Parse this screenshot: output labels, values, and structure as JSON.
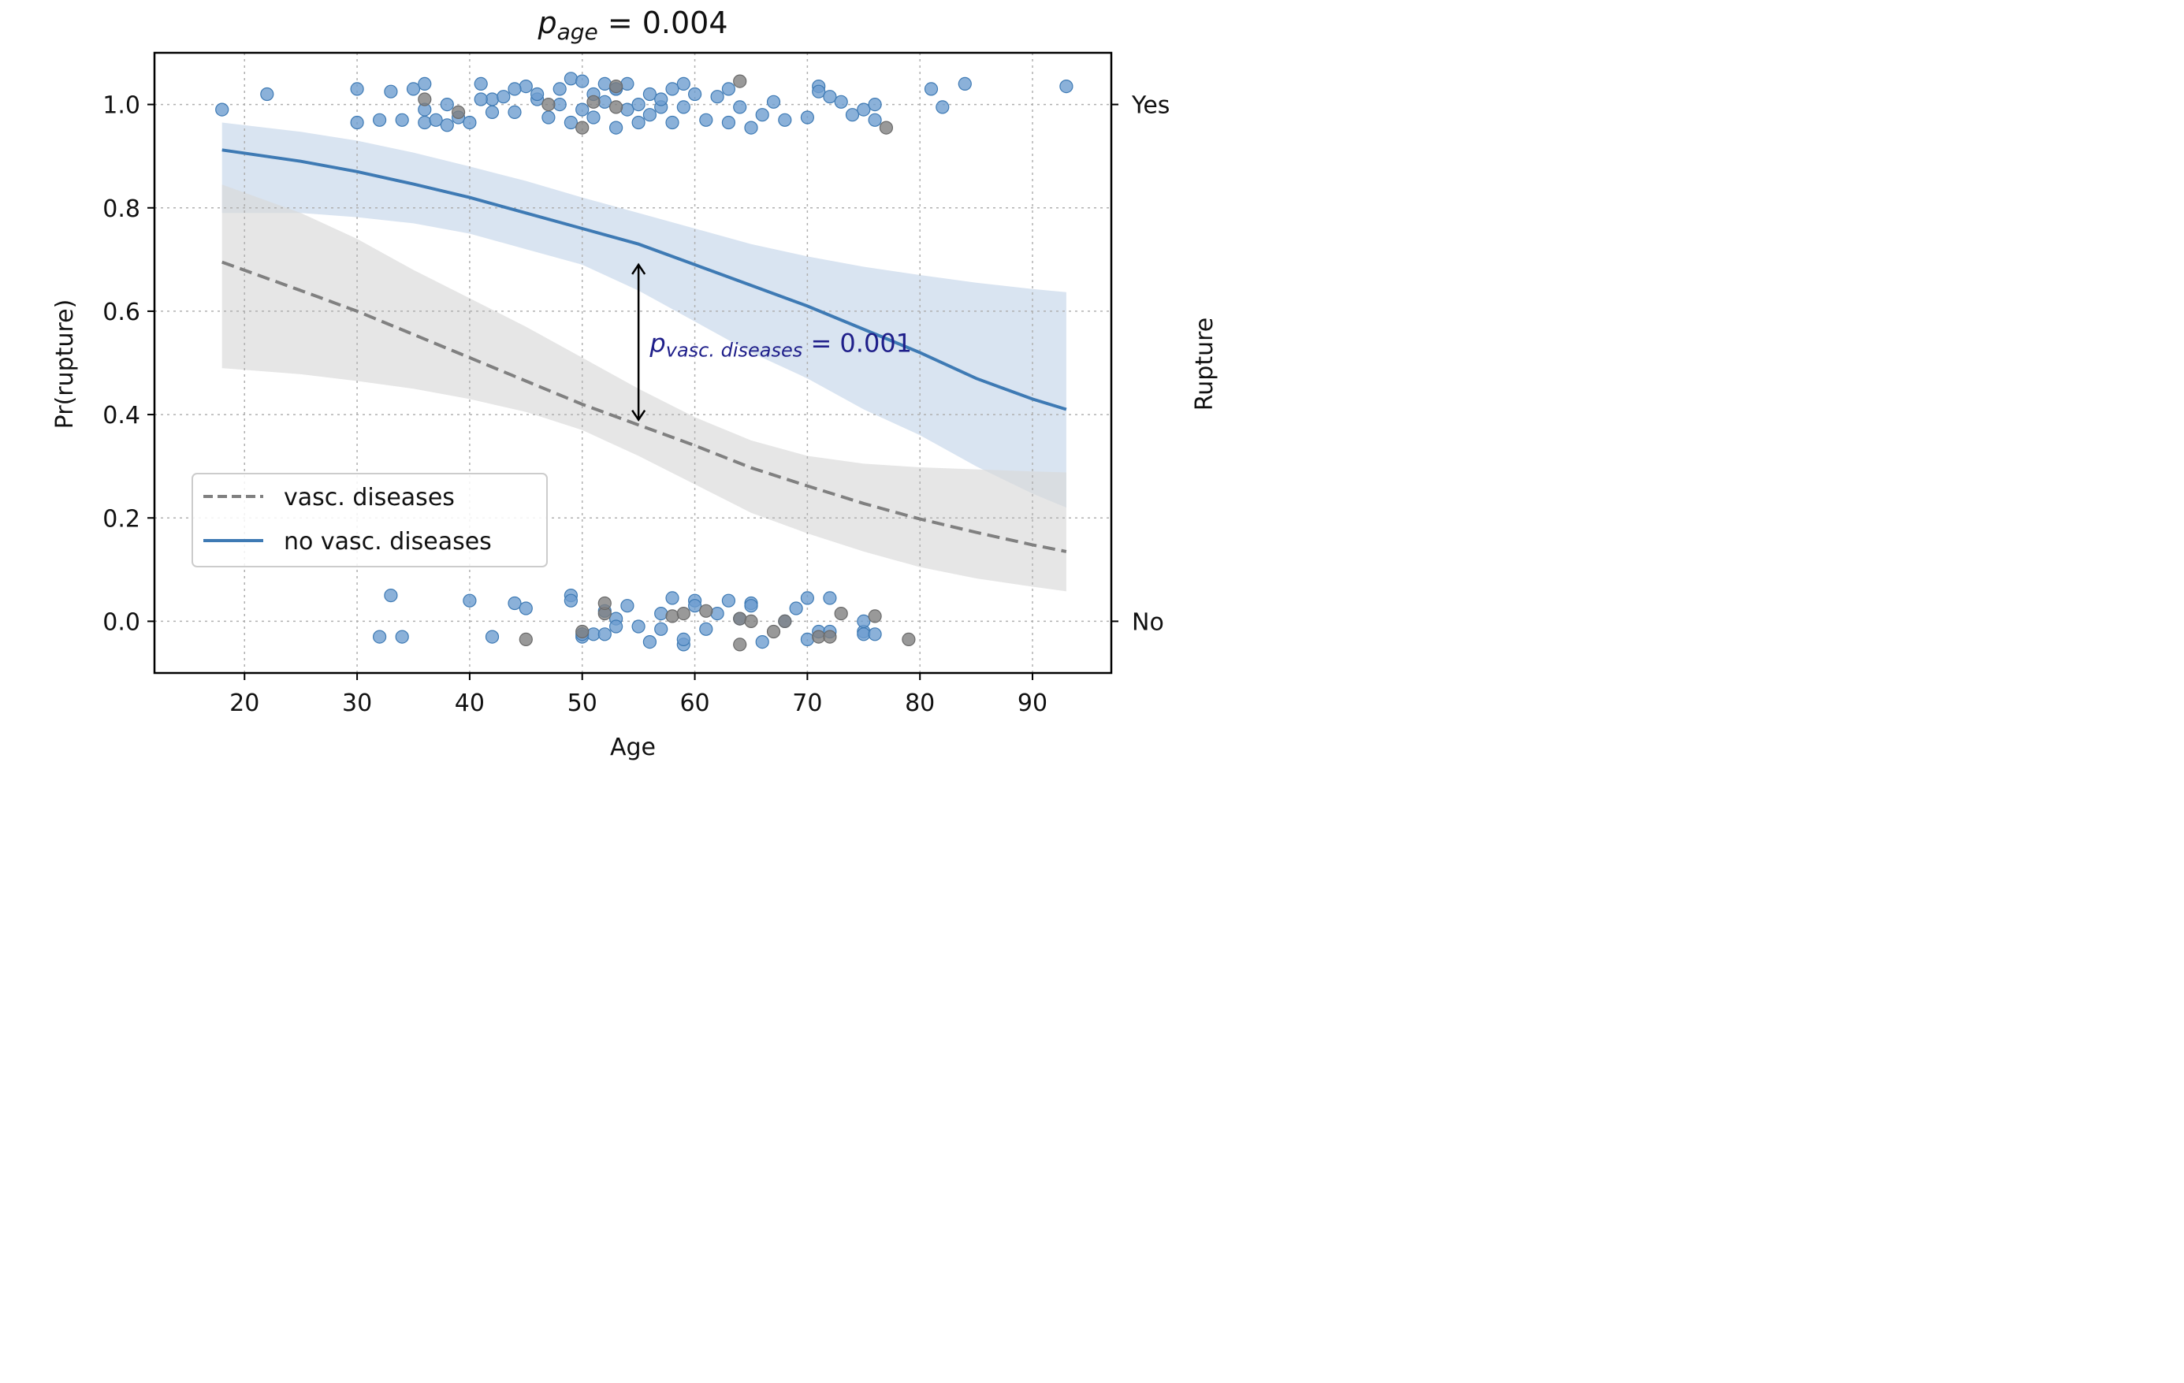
{
  "chart_data": {
    "type": "scatter",
    "title_main": "p",
    "title_sub": "age",
    "title_rest": " = 0.004",
    "xlabel": "Age",
    "ylabel": "Pr(rupture)",
    "y2label": "Rupture",
    "xlim": [
      12,
      97
    ],
    "ylim": [
      -0.1,
      1.1
    ],
    "xticks": [
      20,
      30,
      40,
      50,
      60,
      70,
      80,
      90
    ],
    "yticks": [
      0.0,
      0.2,
      0.4,
      0.6,
      0.8,
      1.0
    ],
    "ytick_labels": [
      "0.0",
      "0.2",
      "0.4",
      "0.6",
      "0.8",
      "1.0"
    ],
    "y2ticks": [
      {
        "value": 1.0,
        "label": "Yes"
      },
      {
        "value": 0.0,
        "label": "No"
      }
    ],
    "grid": true,
    "legend": {
      "position": "lower-left",
      "entries": [
        {
          "label": "vasc. diseases",
          "series": "vasc"
        },
        {
          "label": "no vasc. diseases",
          "series": "novasc"
        }
      ]
    },
    "annotation": {
      "main": "p",
      "sub": "vasc. diseases",
      "rest": " = 0.001",
      "x": 55,
      "y_from": 0.39,
      "y_to": 0.69,
      "text_x": 56
    },
    "series": [
      {
        "name": "no vasc. diseases",
        "key": "novasc",
        "color": "#3e7ab4",
        "band_color": "#c4d6ea",
        "linestyle": "solid",
        "x": [
          18,
          25,
          30,
          35,
          40,
          45,
          50,
          55,
          60,
          65,
          70,
          75,
          80,
          85,
          90,
          93
        ],
        "y": [
          0.912,
          0.89,
          0.87,
          0.846,
          0.82,
          0.79,
          0.76,
          0.73,
          0.69,
          0.65,
          0.61,
          0.565,
          0.52,
          0.47,
          0.43,
          0.41
        ],
        "ci_upper": [
          0.965,
          0.947,
          0.93,
          0.907,
          0.88,
          0.852,
          0.82,
          0.79,
          0.76,
          0.73,
          0.706,
          0.686,
          0.67,
          0.655,
          0.643,
          0.637
        ],
        "ci_lower": [
          0.79,
          0.79,
          0.782,
          0.77,
          0.75,
          0.72,
          0.69,
          0.64,
          0.58,
          0.52,
          0.47,
          0.41,
          0.36,
          0.3,
          0.247,
          0.22
        ]
      },
      {
        "name": "vasc. diseases",
        "key": "vasc",
        "color": "#808080",
        "band_color": "#d9d9d9",
        "linestyle": "dashed",
        "x": [
          18,
          25,
          30,
          35,
          40,
          45,
          50,
          55,
          60,
          65,
          70,
          75,
          80,
          85,
          90,
          93
        ],
        "y": [
          0.695,
          0.64,
          0.6,
          0.555,
          0.51,
          0.465,
          0.42,
          0.38,
          0.34,
          0.297,
          0.262,
          0.228,
          0.198,
          0.172,
          0.148,
          0.135
        ],
        "ci_upper": [
          0.845,
          0.79,
          0.74,
          0.68,
          0.625,
          0.57,
          0.51,
          0.45,
          0.395,
          0.35,
          0.32,
          0.305,
          0.298,
          0.294,
          0.29,
          0.288
        ],
        "ci_lower": [
          0.49,
          0.478,
          0.465,
          0.45,
          0.43,
          0.405,
          0.37,
          0.32,
          0.265,
          0.21,
          0.17,
          0.135,
          0.105,
          0.083,
          0.067,
          0.058
        ]
      }
    ],
    "points": {
      "novasc": {
        "color": "#6e9ecf",
        "edge": "#3e7ab4",
        "x": [
          18,
          22,
          30,
          32,
          33,
          34,
          35,
          36,
          36,
          37,
          38,
          39,
          40,
          41,
          42,
          42,
          43,
          44,
          45,
          46,
          47,
          48,
          49,
          49,
          50,
          50,
          51,
          51,
          52,
          52,
          53,
          53,
          54,
          54,
          55,
          55,
          56,
          57,
          57,
          58,
          58,
          59,
          59,
          60,
          61,
          62,
          63,
          63,
          64,
          65,
          66,
          67,
          68,
          70,
          71,
          71,
          72,
          73,
          74,
          75,
          76,
          76,
          81,
          82,
          84,
          93,
          30,
          36,
          41,
          48,
          53,
          56,
          44,
          38,
          46
        ],
        "y": [
          0.99,
          1.02,
          0.965,
          0.97,
          1.025,
          0.97,
          1.03,
          0.965,
          0.99,
          0.97,
          1.0,
          0.975,
          0.965,
          1.04,
          1.01,
          0.985,
          1.015,
          0.985,
          1.035,
          1.01,
          0.975,
          1.0,
          1.05,
          0.965,
          0.99,
          1.045,
          1.02,
          0.975,
          1.04,
          1.005,
          0.955,
          1.03,
          0.99,
          1.04,
          1.0,
          0.965,
          1.02,
          0.995,
          1.01,
          0.965,
          1.03,
          0.995,
          1.04,
          1.02,
          0.97,
          1.015,
          0.965,
          1.03,
          0.995,
          0.955,
          0.98,
          1.005,
          0.97,
          0.975,
          1.035,
          1.025,
          1.015,
          1.005,
          0.98,
          0.99,
          1.0,
          0.97,
          1.03,
          0.995,
          1.04,
          1.035,
          1.03,
          1.04,
          1.01,
          1.03,
          1.03,
          0.98,
          1.03,
          0.96,
          1.02
        ]
      },
      "novasc_low": {
        "x": [
          32,
          33,
          34,
          40,
          42,
          44,
          45,
          49,
          49,
          50,
          51,
          52,
          53,
          53,
          54,
          55,
          56,
          57,
          58,
          59,
          59,
          60,
          61,
          62,
          63,
          64,
          65,
          65,
          66,
          68,
          69,
          70,
          70,
          71,
          72,
          72,
          75,
          75,
          75,
          76,
          57,
          50,
          52,
          60
        ],
        "y": [
          -0.03,
          0.05,
          -0.03,
          0.04,
          -0.03,
          0.035,
          0.025,
          0.05,
          0.04,
          -0.03,
          -0.025,
          -0.025,
          0.005,
          -0.01,
          0.03,
          -0.01,
          -0.04,
          0.015,
          0.045,
          -0.045,
          -0.035,
          0.04,
          -0.015,
          0.015,
          0.04,
          0.005,
          0.035,
          0.03,
          -0.04,
          0.0,
          0.025,
          -0.035,
          0.045,
          -0.02,
          0.045,
          -0.02,
          -0.02,
          0.0,
          -0.025,
          -0.025,
          -0.015,
          -0.025,
          0.02,
          0.03
        ]
      },
      "vasc": {
        "color": "#7f7f7f",
        "edge": "#6a6a6a",
        "x": [
          36,
          39,
          47,
          50,
          51,
          53,
          53,
          64,
          77
        ],
        "y": [
          1.01,
          0.985,
          1.0,
          0.955,
          1.005,
          1.035,
          0.995,
          1.045,
          0.955
        ]
      },
      "vasc_low": {
        "x": [
          45,
          50,
          52,
          52,
          58,
          59,
          61,
          64,
          64,
          65,
          67,
          68,
          71,
          72,
          73,
          76,
          79
        ],
        "y": [
          -0.035,
          -0.02,
          0.015,
          0.035,
          0.01,
          0.015,
          0.02,
          0.005,
          -0.045,
          0.0,
          -0.02,
          0.0,
          -0.03,
          -0.03,
          0.015,
          0.01,
          -0.035
        ]
      }
    }
  }
}
